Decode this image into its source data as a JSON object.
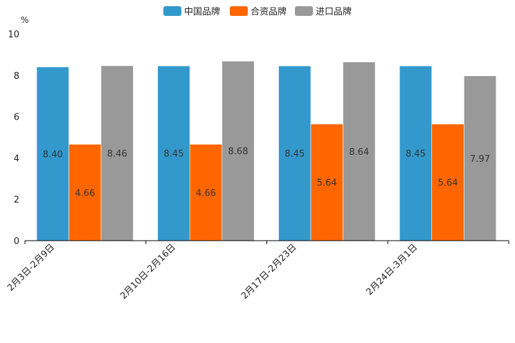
{
  "chart_data": {
    "type": "bar",
    "title": "",
    "xlabel": "",
    "ylabel": "%",
    "ylim": [
      0,
      10
    ],
    "yticks": [
      0,
      2,
      4,
      6,
      8,
      10
    ],
    "grid": false,
    "legend_position": "top-center",
    "categories": [
      "2月3日-2月9日",
      "2月10日-2月16日",
      "2月17日-2月23日",
      "2月24日-3月1日"
    ],
    "series": [
      {
        "name": "中国品牌",
        "color": "#3399CC",
        "values": [
          8.4,
          8.45,
          8.45,
          8.45
        ],
        "labels": [
          "8.40",
          "8.45",
          "8.45",
          "8.45"
        ]
      },
      {
        "name": "合资品牌",
        "color": "#FF6600",
        "values": [
          4.66,
          4.66,
          5.64,
          5.64
        ],
        "labels": [
          "4.66",
          "4.66",
          "5.64",
          "5.64"
        ]
      },
      {
        "name": "进口品牌",
        "color": "#999999",
        "values": [
          8.46,
          8.68,
          8.64,
          7.97
        ],
        "labels": [
          "8.46",
          "8.68",
          "8.64",
          "7.97"
        ]
      }
    ]
  }
}
